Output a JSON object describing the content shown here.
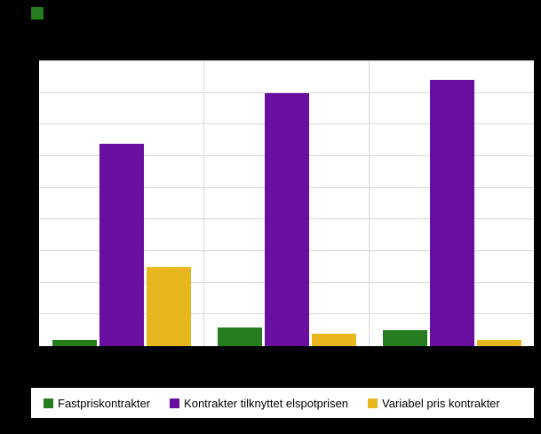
{
  "chart_data": {
    "type": "bar",
    "title": "",
    "categories": [
      "",
      "",
      ""
    ],
    "series": [
      {
        "name": "Fastpriskontrakter",
        "color": "#257d20",
        "values": [
          2,
          6,
          5
        ]
      },
      {
        "name": "Kontrakter tilknyttet elspotprisen",
        "color": "#690fa0",
        "values": [
          64,
          80,
          84
        ]
      },
      {
        "name": "Variabel pris kontrakter",
        "color": "#e8b71d",
        "values": [
          25,
          4,
          2
        ]
      }
    ],
    "xlabel": "",
    "ylabel": "",
    "ylim": [
      0,
      90
    ],
    "grid": {
      "horizontal": true,
      "interval": 10,
      "color": "#d9d9d9"
    },
    "legend_position": "bottom",
    "plot_background": "#ffffff",
    "page_background": "#000000"
  },
  "branding": {
    "corner_mark_color": "#257d20"
  }
}
